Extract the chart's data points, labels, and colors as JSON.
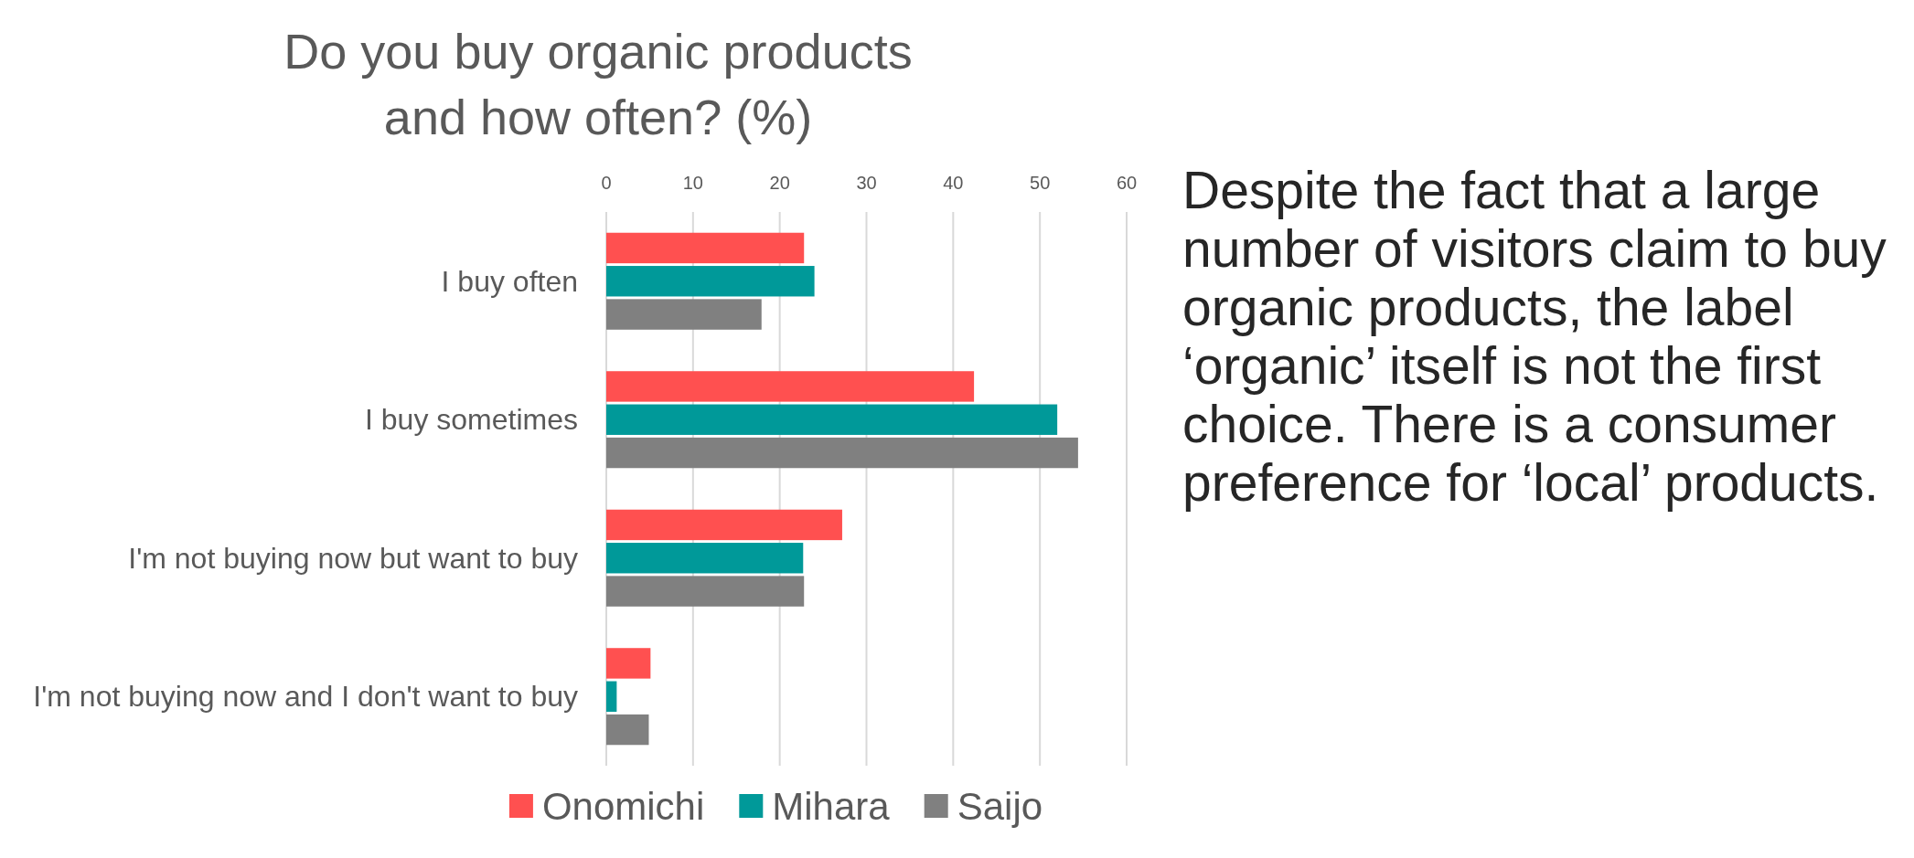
{
  "chart_data": {
    "type": "bar",
    "orientation": "horizontal",
    "title": "Do you buy organic products and how often? (%)",
    "categories": [
      "I buy often",
      "I buy sometimes",
      "I'm not buying now but want to buy",
      "I'm not buying now and I don't want to buy"
    ],
    "series": [
      {
        "name": "Onomichi",
        "color": "#ff5050",
        "values": [
          22.8,
          42.4,
          27.2,
          5.1
        ]
      },
      {
        "name": "Mihara",
        "color": "#009999",
        "values": [
          24.0,
          52.0,
          22.7,
          1.2
        ]
      },
      {
        "name": "Saijo",
        "color": "#808080",
        "values": [
          17.9,
          54.4,
          22.8,
          4.9
        ]
      }
    ],
    "xlim": [
      0,
      60
    ],
    "xticks": [
      0,
      10,
      20,
      30,
      40,
      50,
      60
    ],
    "grid": "x",
    "legend": "bottom",
    "annotations": [
      "Despite the fact that a large number of visitors claim to buy organic products, the label ‘organic’ itself is not the first choice. There is a consumer preference for ‘local’ products."
    ]
  }
}
